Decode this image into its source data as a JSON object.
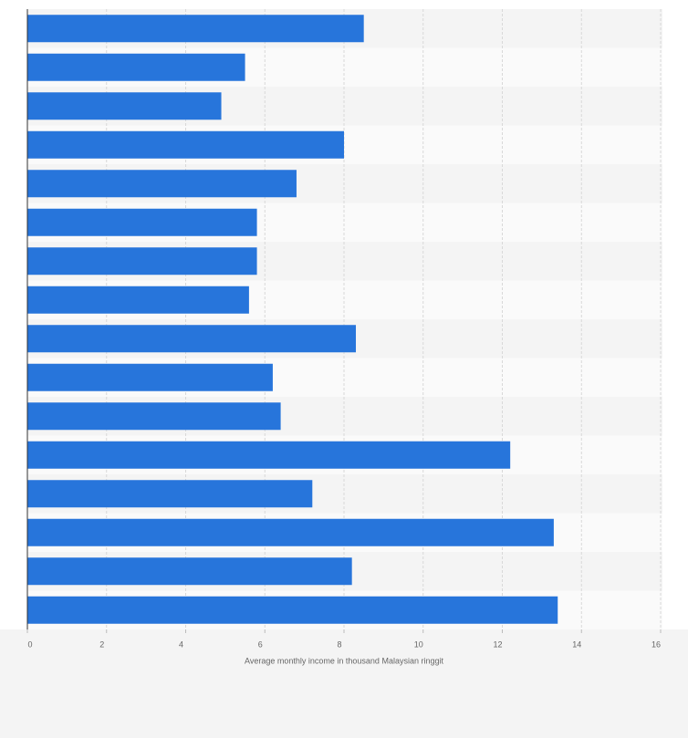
{
  "chart_data": {
    "type": "hbar",
    "x_label": "Average monthly income in thousand Malaysian ringgit",
    "categories": [
      null,
      null,
      null,
      null,
      null,
      null,
      null,
      null,
      null,
      null,
      null,
      null,
      null,
      null,
      null,
      null
    ],
    "values": [
      8.5,
      5.5,
      4.9,
      8.0,
      6.8,
      5.8,
      5.8,
      5.6,
      8.3,
      6.2,
      6.4,
      12.2,
      7.2,
      13.3,
      8.2,
      13.4
    ],
    "color": "#2775db",
    "xlim": [
      0,
      16
    ],
    "xticks": [
      0,
      2,
      4,
      6,
      8,
      10,
      12,
      14,
      16
    ],
    "grid": true
  }
}
